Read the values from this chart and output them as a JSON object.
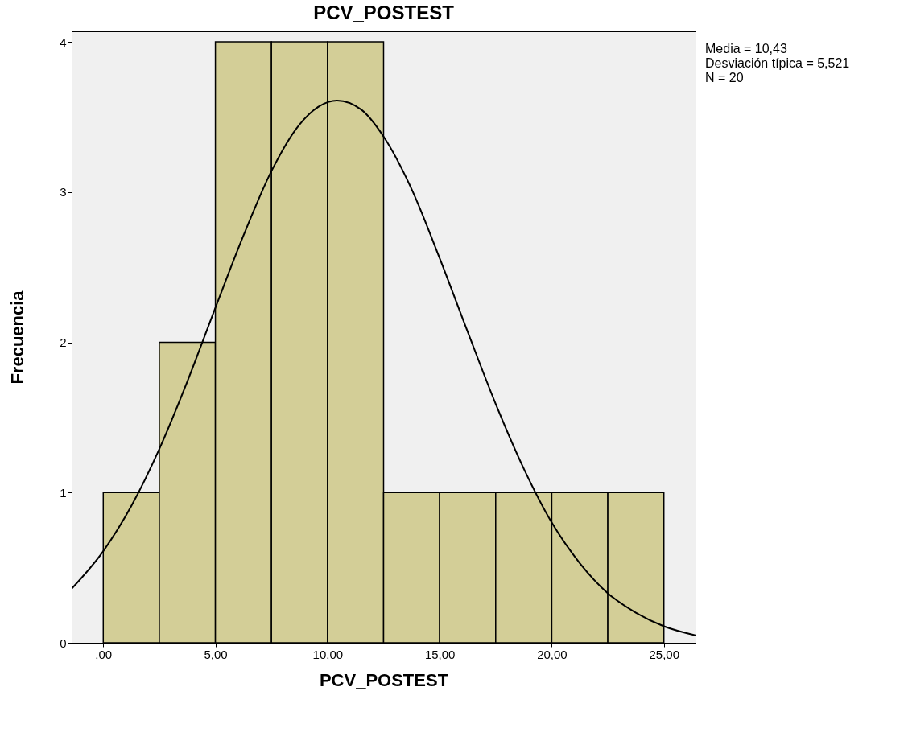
{
  "chart_data": {
    "type": "histogram",
    "title": "PCV_POSTEST",
    "xlabel": "PCV_POSTEST",
    "ylabel": "Frecuencia",
    "bins": [
      0,
      2.5,
      5,
      7.5,
      10,
      12.5,
      15,
      17.5,
      20,
      22.5,
      25
    ],
    "values": [
      1,
      2,
      4,
      4,
      4,
      1,
      1,
      1,
      1,
      1
    ],
    "color": "#d3ce97",
    "series": [
      {
        "type": "line",
        "color": "#000000",
        "x": [
          -1.41,
          0,
          1.25,
          2.5,
          3.75,
          5,
          6.25,
          7.5,
          8.75,
          10.43,
          11.5,
          12.5,
          13.75,
          15,
          16.25,
          17.5,
          18.75,
          20,
          21.25,
          22.5,
          23.75,
          25,
          26.41
        ],
        "values": [
          0.36,
          0.61,
          0.91,
          1.29,
          1.74,
          2.23,
          2.71,
          3.14,
          3.45,
          3.61,
          3.55,
          3.37,
          3.02,
          2.56,
          2.07,
          1.59,
          1.16,
          0.8,
          0.53,
          0.33,
          0.2,
          0.11,
          0.05
        ]
      }
    ],
    "xlim": [
      -1.41,
      26.41
    ],
    "ylim": [
      0,
      4.07
    ],
    "xticks": [
      {
        "value": 0,
        "label": ",00"
      },
      {
        "value": 5,
        "label": "5,00"
      },
      {
        "value": 10,
        "label": "10,00"
      },
      {
        "value": 15,
        "label": "15,00"
      },
      {
        "value": 20,
        "label": "20,00"
      },
      {
        "value": 25,
        "label": "25,00"
      }
    ],
    "yticks": [
      0,
      1,
      2,
      3,
      4
    ],
    "annotations": [
      "Media = 10,43",
      "Desviación típica = 5,521",
      "N = 20"
    ]
  }
}
